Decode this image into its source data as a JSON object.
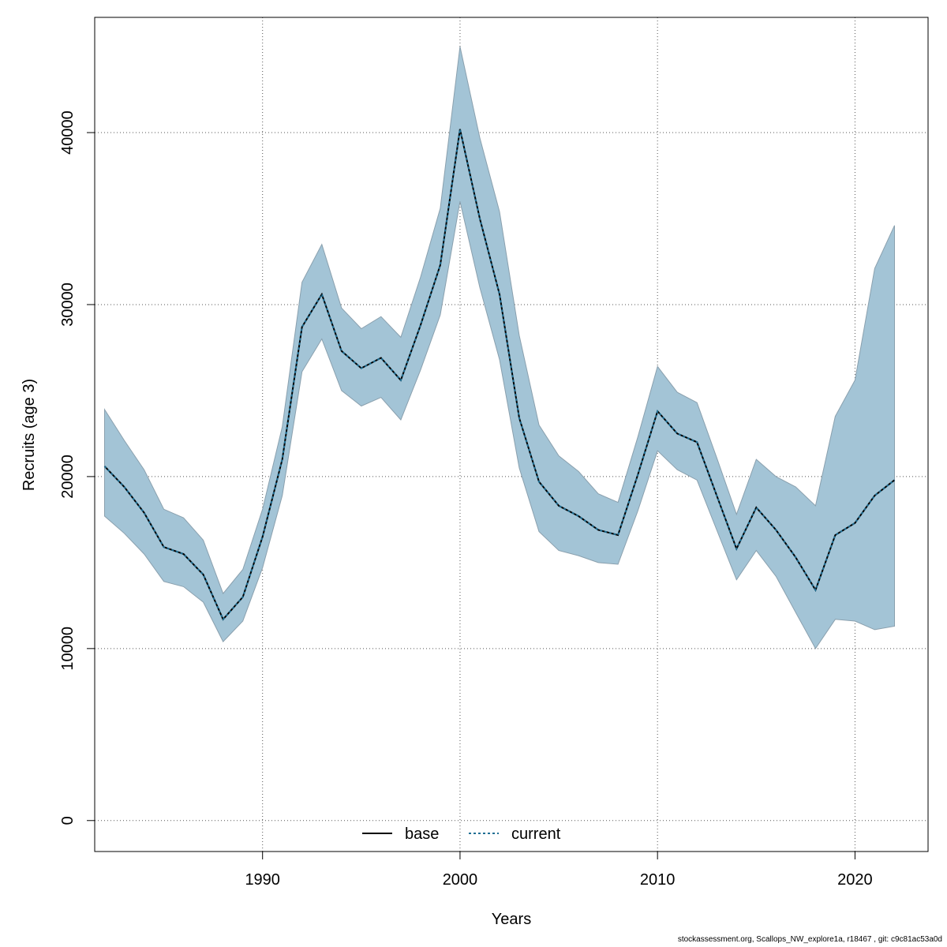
{
  "chart_data": {
    "type": "line",
    "title": "",
    "xlabel": "Years",
    "ylabel": "Recruits (age 3)",
    "xlim": [
      1981.5,
      2023.7
    ],
    "ylim": [
      -1800,
      46700
    ],
    "x_ticks": [
      1990,
      2000,
      2010,
      2020
    ],
    "y_ticks": [
      0,
      10000,
      20000,
      30000,
      40000
    ],
    "grid": true,
    "legend_position": "bottom-center",
    "x": [
      1982,
      1983,
      1984,
      1985,
      1986,
      1987,
      1988,
      1989,
      1990,
      1991,
      1992,
      1993,
      1994,
      1995,
      1996,
      1997,
      1998,
      1999,
      2000,
      2001,
      2002,
      2003,
      2004,
      2005,
      2006,
      2007,
      2008,
      2009,
      2010,
      2011,
      2012,
      2013,
      2014,
      2015,
      2016,
      2017,
      2018,
      2019,
      2020,
      2021,
      2022
    ],
    "series": [
      {
        "name": "base",
        "style": "solid",
        "color": "#000000",
        "values": [
          20600,
          19400,
          17900,
          15900,
          15500,
          14300,
          11700,
          13000,
          16500,
          21000,
          28700,
          30600,
          27300,
          26300,
          26900,
          25600,
          28800,
          32300,
          40200,
          35000,
          30600,
          23400,
          19700,
          18300,
          17700,
          16900,
          16600,
          20100,
          23800,
          22500,
          22000,
          18900,
          15800,
          18200,
          16900,
          15300,
          13400,
          16600,
          17300,
          18900,
          19800
        ]
      },
      {
        "name": "current",
        "style": "dotted",
        "color": "#1f6f94",
        "values": [
          20600,
          19400,
          17900,
          15900,
          15500,
          14300,
          11700,
          13000,
          16500,
          21000,
          28700,
          30600,
          27300,
          26300,
          26900,
          25600,
          28800,
          32300,
          40200,
          35000,
          30600,
          23400,
          19700,
          18300,
          17700,
          16900,
          16600,
          20100,
          23800,
          22500,
          22000,
          18900,
          15800,
          18200,
          16900,
          15300,
          13400,
          16600,
          17300,
          18900,
          19800
        ]
      }
    ],
    "band": {
      "color": "#a3c4d6",
      "edge_color": "#8aa0ae",
      "upper": [
        23900,
        22100,
        20400,
        18100,
        17600,
        16300,
        13200,
        14600,
        18100,
        22900,
        31300,
        33500,
        29800,
        28600,
        29300,
        28100,
        31600,
        35600,
        45000,
        39700,
        35400,
        28200,
        23000,
        21200,
        20300,
        19000,
        18500,
        22300,
        26400,
        24900,
        24300,
        21100,
        17800,
        21000,
        20000,
        19400,
        18300,
        23500,
        25600,
        32100,
        34600
      ],
      "lower": [
        17700,
        16700,
        15500,
        13900,
        13600,
        12700,
        10400,
        11600,
        14700,
        18900,
        26100,
        28000,
        25000,
        24100,
        24600,
        23300,
        26200,
        29400,
        36000,
        31000,
        26800,
        20500,
        16800,
        15700,
        15400,
        15000,
        14900,
        18000,
        21500,
        20400,
        19800,
        16900,
        14000,
        15700,
        14200,
        12100,
        10000,
        11700,
        11600,
        11100,
        11300
      ]
    },
    "annotation": "stockassessment.org, Scallops_NW_explore1a, r18467 , git: c9c81ac53a0d"
  }
}
